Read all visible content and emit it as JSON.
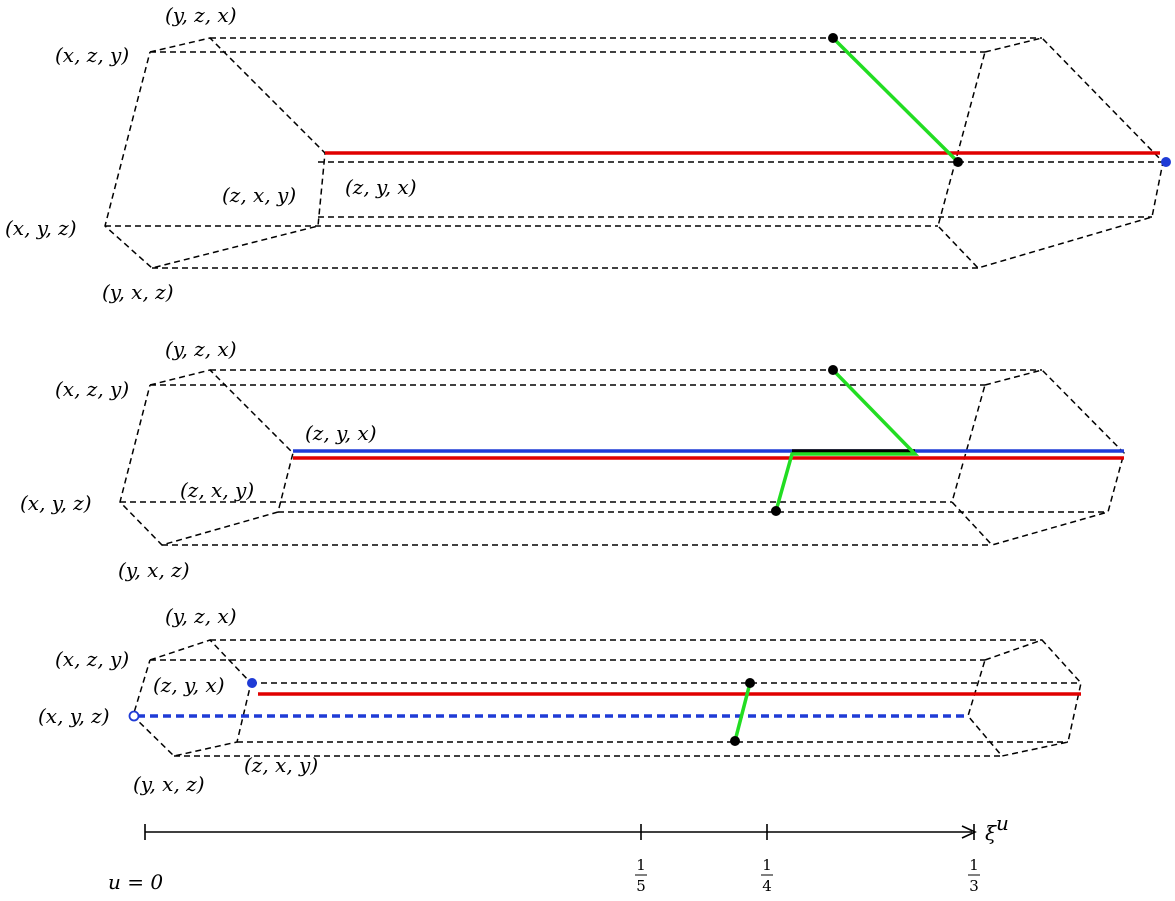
{
  "panels": [
    {
      "labels": {
        "yzx": "(y, z, x)",
        "xzy": "(x, z, y)",
        "zxy": "(z, x, y)",
        "zyx": "(z, y, x)",
        "xyz": "(x, y, z)",
        "yxz": "(y, x, z)"
      }
    },
    {
      "labels": {
        "yzx": "(y, z, x)",
        "xzy": "(x, z, y)",
        "zyx": "(z, y, x)",
        "zxy": "(z, x, y)",
        "xyz": "(x, y, z)",
        "yxz": "(y, x, z)"
      }
    },
    {
      "labels": {
        "yzx": "(y, z, x)",
        "xzy": "(x, z, y)",
        "zyx": "(z, y, x)",
        "xyz": "(x, y, z)",
        "zxy": "(z, x, y)",
        "yxz": "(y, x, z)"
      }
    }
  ],
  "axis": {
    "label": "ξ",
    "label_sup": "u",
    "origin_label": "u = 0",
    "ticks": [
      {
        "num": "1",
        "den": "5"
      },
      {
        "num": "1",
        "den": "4"
      },
      {
        "num": "1",
        "den": "3"
      }
    ]
  },
  "colors": {
    "red": "#e00000",
    "blue": "#1f3bd6",
    "green": "#22dd22",
    "black": "#000000"
  }
}
